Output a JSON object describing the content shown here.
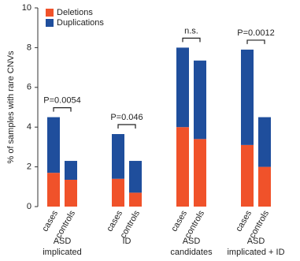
{
  "chart_data": {
    "type": "stacked-bar",
    "ylabel": "% of samples with rare CNVs",
    "ylim": [
      0,
      10
    ],
    "yticks": [
      0,
      2,
      4,
      6,
      8,
      10
    ],
    "categories": [
      "cases",
      "controls",
      "cases",
      "controls",
      "cases",
      "controls",
      "cases",
      "controls"
    ],
    "group_labels": [
      [
        "ASD",
        "implicated"
      ],
      [
        "ID"
      ],
      [
        "ASD",
        "candidates"
      ],
      [
        "ASD",
        "implicated + ID"
      ]
    ],
    "group_annotations": [
      "P=0.0054",
      "P=0.046",
      "n.s.",
      "P=0.0012"
    ],
    "legend": "top-left",
    "series": [
      {
        "name": "Deletions",
        "color": "#f0522a",
        "values": [
          1.7,
          1.35,
          1.4,
          0.7,
          4.0,
          3.4,
          3.1,
          2.0
        ]
      },
      {
        "name": "Duplications",
        "color": "#1f4e9c",
        "values": [
          2.8,
          0.95,
          2.25,
          1.6,
          4.0,
          3.95,
          4.8,
          2.5
        ]
      }
    ]
  }
}
